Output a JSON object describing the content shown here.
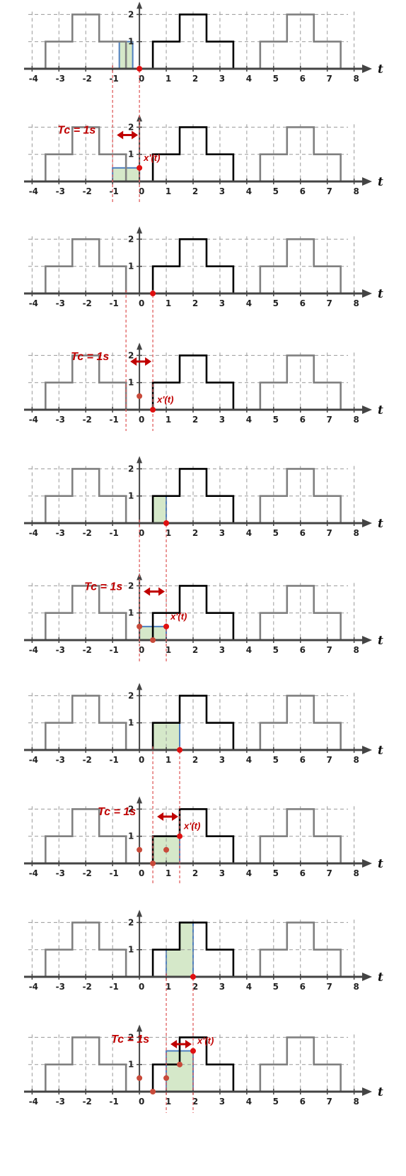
{
  "chart_data": {
    "type": "diagram",
    "description_values": {
      "signal_levels": [
        0,
        1,
        2,
        1,
        0
      ],
      "signal_breakpoints": [
        0.5,
        1.5,
        2.5,
        3.5
      ],
      "period": 4
    },
    "axis_label": "t",
    "tick_labels": [
      "-4",
      "-3",
      "-2",
      "-1",
      "0",
      "1",
      "2",
      "3",
      "4",
      "5",
      "6",
      "7",
      "8"
    ],
    "y_tick_labels": [
      "1",
      "2"
    ],
    "xlim": [
      -4.3,
      8.3
    ],
    "ylim": [
      0,
      2
    ],
    "panels": [
      {
        "window": [
          -1,
          0
        ],
        "shade": {
          "type": "window",
          "range": [
            -0.75,
            -0.25
          ],
          "height": 1
        },
        "tc_label": "Tc = 1s",
        "xprime_label": "x'(t)",
        "xprime_points": [
          [
            0,
            0.5
          ]
        ]
      },
      {
        "window": [
          -0.5,
          0.5
        ],
        "tc_label": "Tc = 1s",
        "xprime_label": "x'(t)",
        "xprime_points": [
          [
            0,
            0.5
          ],
          [
            0.5,
            0
          ]
        ]
      },
      {
        "window": [
          0,
          1
        ],
        "shade": {
          "type": "window",
          "range": [
            0.5,
            1
          ],
          "height": 1
        },
        "tc_label": "Tc = 1s",
        "xprime_label": "x'(t)",
        "xprime_points": [
          [
            0,
            0.5
          ],
          [
            0.5,
            0
          ],
          [
            1,
            0.5
          ]
        ]
      },
      {
        "window": [
          0.5,
          1.5
        ],
        "shade": {
          "type": "window",
          "range": [
            0.5,
            1.5
          ],
          "height": 1
        },
        "tc_label": "Tc = 1s",
        "xprime_label": "x'(t)",
        "xprime_points": [
          [
            0,
            0.5
          ],
          [
            0.5,
            0
          ],
          [
            1,
            0.5
          ],
          [
            1.5,
            1
          ]
        ]
      },
      {
        "window": [
          1,
          2
        ],
        "shade": {
          "type": "window",
          "range": [
            1,
            2
          ],
          "heights": [
            1,
            2
          ]
        },
        "tc_label": "Tc = 1s",
        "xprime_label": "x'(t)",
        "xprime_points": [
          [
            0,
            0.5
          ],
          [
            0.5,
            0
          ],
          [
            1,
            0.5
          ],
          [
            1.5,
            1
          ],
          [
            2,
            1.5
          ]
        ]
      }
    ]
  }
}
